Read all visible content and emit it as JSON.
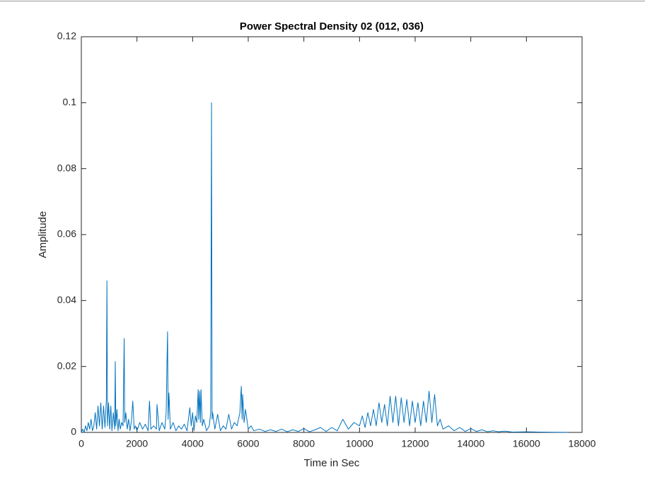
{
  "chart_data": {
    "type": "line",
    "title": "Power Spectral Density 02 (012, 036)",
    "xlabel": "Time in Sec",
    "ylabel": "Amplitude",
    "xlim": [
      0,
      18000
    ],
    "ylim": [
      0,
      0.12
    ],
    "xticks": [
      0,
      2000,
      4000,
      6000,
      8000,
      10000,
      12000,
      14000,
      16000,
      18000
    ],
    "yticks": [
      0,
      0.02,
      0.04,
      0.06,
      0.08,
      0.1,
      0.12
    ],
    "grid": false,
    "series": [
      {
        "color": "#0072bd",
        "x": [
          0,
          50,
          100,
          150,
          200,
          250,
          300,
          350,
          400,
          450,
          500,
          550,
          600,
          650,
          700,
          750,
          800,
          850,
          900,
          920,
          940,
          980,
          1020,
          1060,
          1100,
          1150,
          1200,
          1220,
          1240,
          1280,
          1320,
          1360,
          1400,
          1450,
          1500,
          1540,
          1560,
          1600,
          1650,
          1700,
          1750,
          1800,
          1850,
          1900,
          1950,
          2000,
          2100,
          2200,
          2300,
          2400,
          2450,
          2500,
          2600,
          2700,
          2720,
          2800,
          2900,
          3000,
          3050,
          3080,
          3100,
          3120,
          3150,
          3200,
          3300,
          3400,
          3500,
          3600,
          3700,
          3800,
          3900,
          3950,
          4000,
          4050,
          4100,
          4150,
          4200,
          4220,
          4250,
          4280,
          4300,
          4350,
          4400,
          4500,
          4600,
          4650,
          4680,
          4700,
          4720,
          4800,
          4900,
          5000,
          5100,
          5200,
          5300,
          5400,
          5500,
          5600,
          5700,
          5750,
          5780,
          5800,
          5850,
          5900,
          6000,
          6100,
          6200,
          6400,
          6600,
          6800,
          7000,
          7200,
          7400,
          7600,
          7800,
          8000,
          8200,
          8400,
          8600,
          8800,
          9000,
          9200,
          9400,
          9600,
          9800,
          10000,
          10100,
          10200,
          10300,
          10400,
          10500,
          10600,
          10700,
          10800,
          10900,
          11000,
          11100,
          11200,
          11300,
          11400,
          11500,
          11600,
          11700,
          11800,
          11900,
          12000,
          12100,
          12200,
          12300,
          12400,
          12500,
          12600,
          12700,
          12800,
          12900,
          13000,
          13200,
          13400,
          13600,
          13800,
          14000,
          14200,
          14400,
          14600,
          14800,
          15000,
          15200,
          15500,
          16000,
          16500,
          17000,
          17500
        ],
        "values": [
          0,
          0.001,
          0,
          0.002,
          0.0005,
          0.003,
          0.001,
          0.004,
          0.0005,
          0.002,
          0.006,
          0.001,
          0.008,
          0.002,
          0.009,
          0.001,
          0.008,
          0.0015,
          0.01,
          0.046,
          0.002,
          0.009,
          0.001,
          0.008,
          0.0005,
          0.006,
          0.001,
          0.0215,
          0.002,
          0.007,
          0.0005,
          0.004,
          0.001,
          0.003,
          0.002,
          0.0285,
          0.003,
          0.006,
          0.001,
          0.004,
          0.0005,
          0.0035,
          0.0095,
          0.001,
          0.002,
          0.0005,
          0.003,
          0.001,
          0.0025,
          0.0005,
          0.0095,
          0.001,
          0.002,
          0.001,
          0.0085,
          0.0005,
          0.003,
          0.001,
          0.006,
          0.022,
          0.0305,
          0.004,
          0.012,
          0.001,
          0.003,
          0.0005,
          0.002,
          0.001,
          0.0025,
          0.0005,
          0.0075,
          0.002,
          0.006,
          0.0005,
          0.005,
          0.003,
          0.013,
          0.004,
          0.0125,
          0.003,
          0.013,
          0.002,
          0.004,
          0.0005,
          0.002,
          0.006,
          0.1,
          0.004,
          0.006,
          0.001,
          0.0055,
          0.0005,
          0.002,
          0.001,
          0.0055,
          0.001,
          0.003,
          0.002,
          0.006,
          0.014,
          0.004,
          0.0115,
          0.003,
          0.007,
          0.001,
          0.002,
          0.0005,
          0.001,
          0.0003,
          0.0008,
          0.0003,
          0.001,
          0.0002,
          0.0008,
          0.0003,
          0.0012,
          0.0002,
          0.0008,
          0.0015,
          0.0003,
          0.0015,
          0.0005,
          0.004,
          0.001,
          0.003,
          0.002,
          0.005,
          0.0015,
          0.006,
          0.002,
          0.007,
          0.002,
          0.009,
          0.003,
          0.0085,
          0.002,
          0.011,
          0.003,
          0.011,
          0.002,
          0.0105,
          0.003,
          0.01,
          0.002,
          0.0095,
          0.003,
          0.009,
          0.002,
          0.0095,
          0.003,
          0.0125,
          0.003,
          0.0115,
          0.002,
          0.004,
          0.001,
          0.002,
          0.0005,
          0.0015,
          0.0003,
          0.0012,
          0.0003,
          0.0008,
          0.0002,
          0.0005,
          0.0002,
          0.0004,
          0.0001,
          0.0002,
          0.0001,
          5e-05,
          3e-05
        ]
      }
    ]
  }
}
